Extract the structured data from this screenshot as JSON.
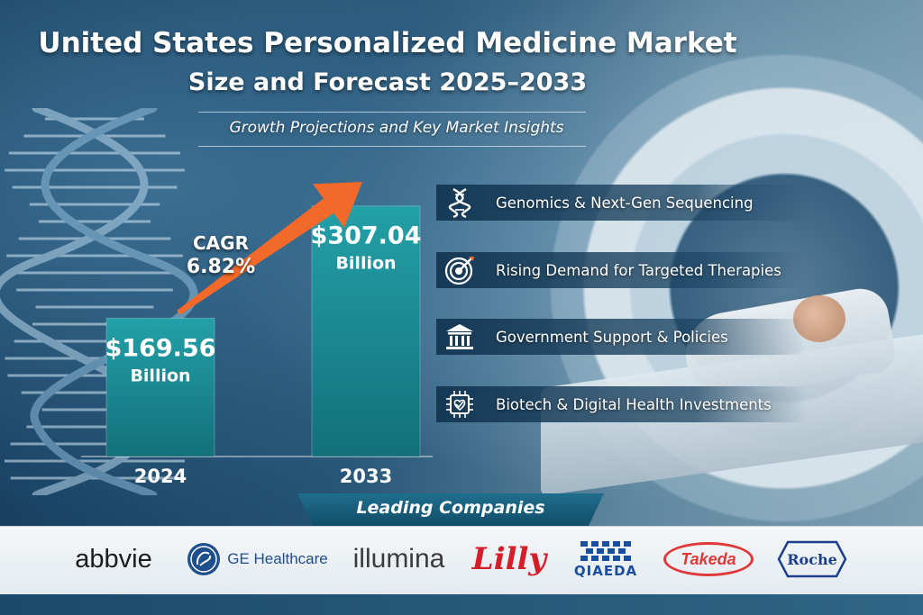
{
  "header": {
    "title_line1": "United States Personalized Medicine Market",
    "title_line2": "Size and Forecast 2025–2033",
    "subtitle": "Growth Projections and Key Market Insights"
  },
  "chart_data": {
    "type": "bar",
    "title": "",
    "categories": [
      "2024",
      "2033"
    ],
    "values": [
      169.56,
      307.04
    ],
    "value_labels": [
      "$169.56",
      "$307.04"
    ],
    "unit_label": "Billion",
    "xlabel": "",
    "ylabel": "",
    "ylim": [
      0,
      320
    ],
    "grid": false,
    "bar_color": "#1c8a94",
    "cagr": {
      "label": "CAGR",
      "value": "6.82%"
    },
    "growth_arrow_color": "#f2692a"
  },
  "drivers": [
    {
      "label": "Genomics & Next-Gen Sequencing",
      "icon": "dna-icon"
    },
    {
      "label": "Rising Demand for Targeted Therapies",
      "icon": "target-icon"
    },
    {
      "label": "Government Support & Policies",
      "icon": "government-building-icon"
    },
    {
      "label": "Biotech & Digital Health Investments",
      "icon": "chip-heart-icon"
    }
  ],
  "companies": {
    "heading": "Leading Companies",
    "logos": [
      "abbvie",
      "GE Healthcare",
      "illumina",
      "Lilly",
      "QIAEDA",
      "Takeda",
      "Roche"
    ]
  }
}
